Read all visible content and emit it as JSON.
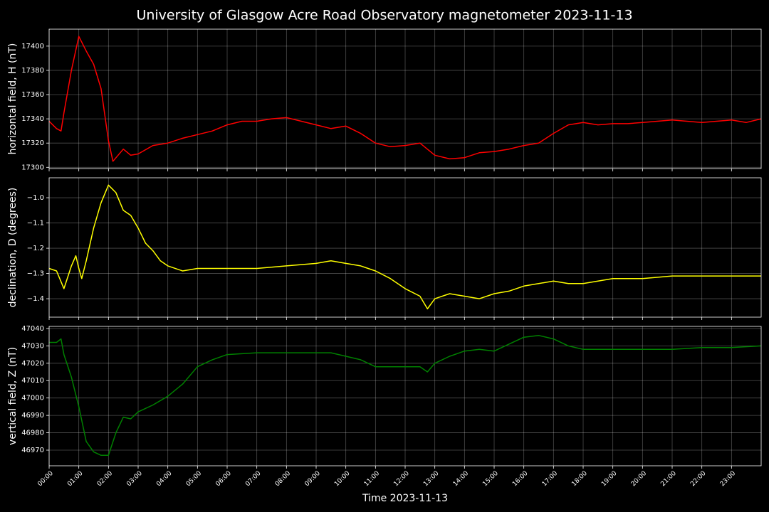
{
  "chart_data": [
    {
      "type": "line",
      "title": "University of Glasgow Acre Road Observatory magnetometer 2023-11-13",
      "ylabel": "horizontal field, H (nT)",
      "series": [
        {
          "name": "H",
          "color": "#ff0000",
          "x": [
            0,
            0.25,
            0.4,
            0.5,
            0.75,
            1,
            1.25,
            1.5,
            1.75,
            2,
            2.15,
            2.5,
            2.75,
            3,
            3.5,
            4,
            4.5,
            5,
            5.5,
            6,
            6.5,
            7,
            7.5,
            8,
            8.5,
            9,
            9.5,
            10,
            10.5,
            11,
            11.5,
            12,
            12.5,
            13,
            13.5,
            14,
            14.5,
            15,
            15.5,
            16,
            16.5,
            17,
            17.5,
            18,
            18.5,
            19,
            19.5,
            20,
            20.5,
            21,
            21.5,
            22,
            22.5,
            23,
            23.5,
            24
          ],
          "values": [
            17338,
            17332,
            17330,
            17345,
            17380,
            17408,
            17396,
            17385,
            17365,
            17322,
            17305,
            17315,
            17310,
            17311,
            17318,
            17320,
            17324,
            17327,
            17330,
            17335,
            17338,
            17338,
            17340,
            17341,
            17338,
            17335,
            17332,
            17334,
            17328,
            17320,
            17317,
            17318,
            17320,
            17310,
            17307,
            17308,
            17312,
            17313,
            17315,
            17318,
            17320,
            17328,
            17335,
            17337,
            17335,
            17336,
            17336,
            17337,
            17338,
            17339,
            17338,
            17337,
            17338,
            17339,
            17337,
            17340
          ]
        }
      ],
      "ylim": [
        17299,
        17414
      ],
      "yticks": [
        17300,
        17320,
        17340,
        17360,
        17380,
        17400
      ],
      "grid": true
    },
    {
      "type": "line",
      "ylabel": "declination, D (degrees)",
      "series": [
        {
          "name": "D",
          "color": "#ffff00",
          "x": [
            0,
            0.25,
            0.5,
            0.75,
            0.9,
            1,
            1.1,
            1.25,
            1.5,
            1.75,
            2,
            2.25,
            2.5,
            2.75,
            3,
            3.25,
            3.5,
            3.75,
            4,
            4.5,
            5,
            5.5,
            6,
            7,
            8,
            9,
            9.5,
            10,
            10.5,
            11,
            11.5,
            12,
            12.5,
            12.75,
            13,
            13.5,
            14,
            14.5,
            15,
            15.5,
            16,
            16.5,
            17,
            17.5,
            18,
            19,
            20,
            21,
            22,
            23,
            24
          ],
          "values": [
            -1.28,
            -1.29,
            -1.36,
            -1.27,
            -1.23,
            -1.28,
            -1.32,
            -1.25,
            -1.12,
            -1.02,
            -0.95,
            -0.98,
            -1.05,
            -1.07,
            -1.12,
            -1.18,
            -1.21,
            -1.25,
            -1.27,
            -1.29,
            -1.28,
            -1.28,
            -1.28,
            -1.28,
            -1.27,
            -1.26,
            -1.25,
            -1.26,
            -1.27,
            -1.29,
            -1.32,
            -1.36,
            -1.39,
            -1.44,
            -1.4,
            -1.38,
            -1.39,
            -1.4,
            -1.38,
            -1.37,
            -1.35,
            -1.34,
            -1.33,
            -1.34,
            -1.34,
            -1.32,
            -1.32,
            -1.31,
            -1.31,
            -1.31,
            -1.31
          ]
        }
      ],
      "ylim": [
        -1.473,
        -0.921
      ],
      "yticks": [
        {
          "value": -1.4,
          "label": "−1.4"
        },
        {
          "value": -1.3,
          "label": "−1.3"
        },
        {
          "value": -1.2,
          "label": "−1.2"
        },
        {
          "value": -1.1,
          "label": "−1.1"
        },
        {
          "value": -1.0,
          "label": "−1.0"
        }
      ],
      "grid": true
    },
    {
      "type": "line",
      "ylabel": "vertical field, Z (nT)",
      "xlabel": "Time 2023-11-13",
      "series": [
        {
          "name": "Z",
          "color": "#008000",
          "x": [
            0,
            0.25,
            0.4,
            0.5,
            0.75,
            1,
            1.25,
            1.5,
            1.75,
            2,
            2.25,
            2.5,
            2.75,
            3,
            3.5,
            4,
            4.5,
            5,
            5.5,
            6,
            7,
            8,
            9,
            9.5,
            10,
            10.5,
            11,
            11.5,
            12,
            12.5,
            12.75,
            13,
            13.5,
            14,
            14.5,
            15,
            15.5,
            16,
            16.5,
            17,
            17.5,
            18,
            19,
            20,
            21,
            22,
            23,
            24
          ],
          "values": [
            47032,
            47032,
            47034,
            47025,
            47012,
            46995,
            46975,
            46969,
            46967,
            46967,
            46980,
            46989,
            46988,
            46992,
            46996,
            47001,
            47008,
            47018,
            47022,
            47025,
            47026,
            47026,
            47026,
            47026,
            47024,
            47022,
            47018,
            47018,
            47018,
            47018,
            47015,
            47020,
            47024,
            47027,
            47028,
            47027,
            47031,
            47035,
            47036,
            47034,
            47030,
            47028,
            47028,
            47028,
            47028,
            47029,
            47029,
            47030
          ]
        }
      ],
      "ylim": [
        46961,
        47041.2
      ],
      "yticks": [
        46970,
        46980,
        46990,
        47000,
        47010,
        47020,
        47030,
        47040
      ],
      "grid": true,
      "xlim": [
        0,
        24
      ],
      "xticks": [
        {
          "value": 0,
          "label": "00:00"
        },
        {
          "value": 1,
          "label": "01:00"
        },
        {
          "value": 2,
          "label": "02:00"
        },
        {
          "value": 3,
          "label": "03:00"
        },
        {
          "value": 4,
          "label": "04:00"
        },
        {
          "value": 5,
          "label": "05:00"
        },
        {
          "value": 6,
          "label": "06:00"
        },
        {
          "value": 7,
          "label": "07:00"
        },
        {
          "value": 8,
          "label": "08:00"
        },
        {
          "value": 9,
          "label": "09:00"
        },
        {
          "value": 10,
          "label": "10:00"
        },
        {
          "value": 11,
          "label": "11:00"
        },
        {
          "value": 12,
          "label": "12:00"
        },
        {
          "value": 13,
          "label": "13:00"
        },
        {
          "value": 14,
          "label": "14:00"
        },
        {
          "value": 15,
          "label": "15:00"
        },
        {
          "value": 16,
          "label": "16:00"
        },
        {
          "value": 17,
          "label": "17:00"
        },
        {
          "value": 18,
          "label": "18:00"
        },
        {
          "value": 19,
          "label": "19:00"
        },
        {
          "value": 20,
          "label": "20:00"
        },
        {
          "value": 21,
          "label": "21:00"
        },
        {
          "value": 22,
          "label": "22:00"
        },
        {
          "value": 23,
          "label": "23:00"
        }
      ]
    }
  ]
}
